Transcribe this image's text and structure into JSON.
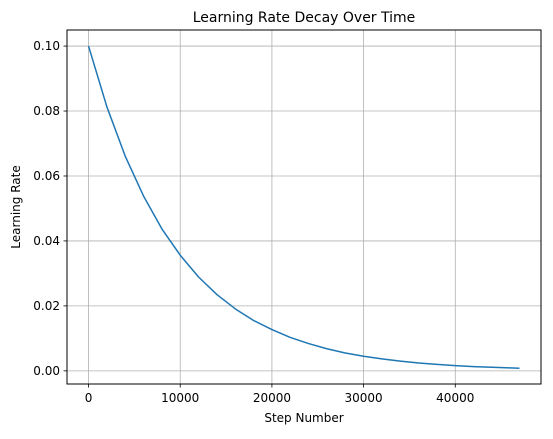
{
  "chart_data": {
    "type": "line",
    "title": "Learning Rate Decay Over Time",
    "xlabel": "Step Number",
    "ylabel": "Learning Rate",
    "xlim": [
      -2350,
      49350
    ],
    "ylim": [
      -0.00405,
      0.10495
    ],
    "xticks": [
      0,
      10000,
      20000,
      30000,
      40000
    ],
    "xtick_labels": [
      "0",
      "10000",
      "20000",
      "30000",
      "40000"
    ],
    "yticks": [
      0.0,
      0.02,
      0.04,
      0.06,
      0.08,
      0.1
    ],
    "ytick_labels": [
      "0.00",
      "0.02",
      "0.04",
      "0.06",
      "0.08",
      "0.10"
    ],
    "grid": true,
    "legend": false,
    "colors": {
      "line": "#1f77b4",
      "grid": "#b0b0b0",
      "axis": "#000000"
    },
    "series": [
      {
        "x": [
          0,
          2000,
          4000,
          6000,
          8000,
          10000,
          12000,
          14000,
          16000,
          18000,
          20000,
          22000,
          24000,
          26000,
          28000,
          30000,
          32000,
          34000,
          36000,
          38000,
          40000,
          42000,
          44000,
          46000,
          47000
        ],
        "y": [
          0.1,
          0.0813,
          0.0661,
          0.0538,
          0.0437,
          0.0356,
          0.0289,
          0.0235,
          0.0191,
          0.0155,
          0.0127,
          0.0103,
          0.0084,
          0.0068,
          0.0055,
          0.0045,
          0.0037,
          0.003,
          0.0024,
          0.002,
          0.0016,
          0.0013,
          0.0011,
          0.0009,
          0.0008
        ]
      }
    ]
  }
}
